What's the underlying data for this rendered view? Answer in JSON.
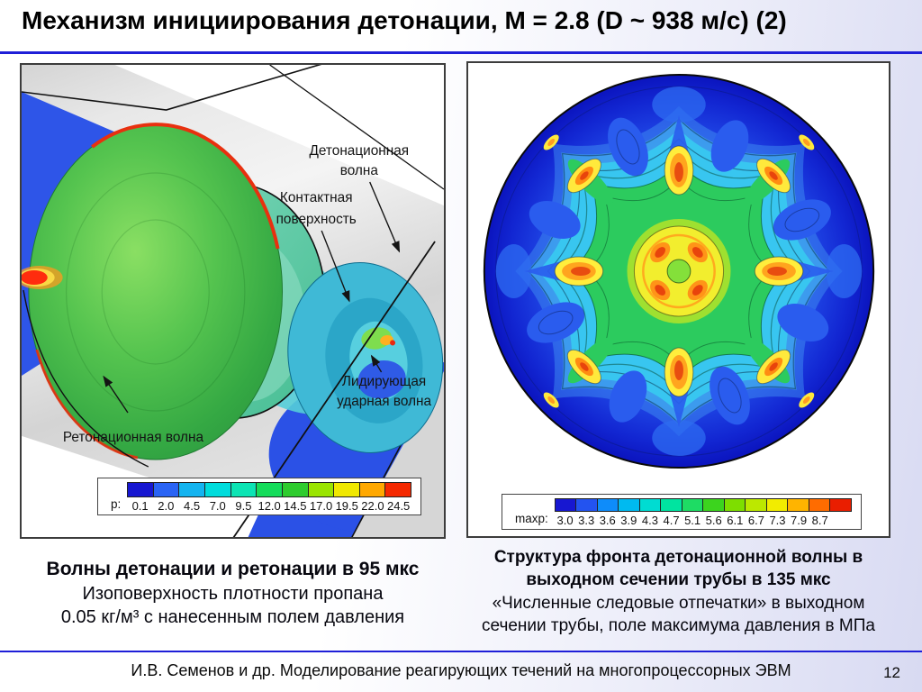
{
  "title": "Механизм инициирования детонации, М = 2.8 (D ~ 938 м/с) (2)",
  "accent": {
    "rule_blue": "#1f1fd8"
  },
  "left_panel": {
    "labels": {
      "detonation_1": "Детонационная",
      "detonation_2": "волна",
      "contact_1": "Контактная",
      "contact_2": "поверхность",
      "leading_1": "Лидирующая",
      "leading_2": "ударная волна",
      "retonation": "Ретонационная волна"
    },
    "colorbar": {
      "label": "p:",
      "ticks": [
        "0.1",
        "2.0",
        "4.5",
        "7.0",
        "9.5",
        "12.0",
        "14.5",
        "17.0",
        "19.5",
        "22.0",
        "24.5"
      ],
      "colors": [
        "#1717d1",
        "#2a64f5",
        "#14b4f0",
        "#00dcdc",
        "#0ce4b4",
        "#15dc5a",
        "#2ecc2e",
        "#9ae400",
        "#f0e800",
        "#ffa800",
        "#f52900"
      ]
    },
    "caption": {
      "line1": "Волны детонации и ретонации в 95 мкс",
      "line2": "Изоповерхность плотности пропана",
      "line3": "0.05 кг/м³ с нанесенным полем давления"
    }
  },
  "right_panel": {
    "colorbar": {
      "label": "maxp:",
      "ticks": [
        "3.0",
        "3.3",
        "3.6",
        "3.9",
        "4.3",
        "4.7",
        "5.1",
        "5.6",
        "6.1",
        "6.7",
        "7.3",
        "7.9",
        "8.7"
      ],
      "colors": [
        "#1717d1",
        "#2353f0",
        "#0e8cfa",
        "#00baf0",
        "#00dcd2",
        "#00e4a0",
        "#1edc64",
        "#3cd41e",
        "#7ede00",
        "#bce800",
        "#f2ec00",
        "#ffb400",
        "#ff6c00",
        "#ea1e00"
      ]
    },
    "caption": {
      "line1": "Структура фронта детонационной волны в",
      "line2": "выходном сечении трубы в 135 мкс",
      "line3": "«Численные следовые отпечатки» в выходном",
      "line4": "сечении трубы, поле максимума давления в МПа"
    }
  },
  "footer": {
    "credit": "И.В. Семенов и др. Моделирование реагирующих течений на многопроцессорных ЭВМ",
    "page": "12"
  }
}
